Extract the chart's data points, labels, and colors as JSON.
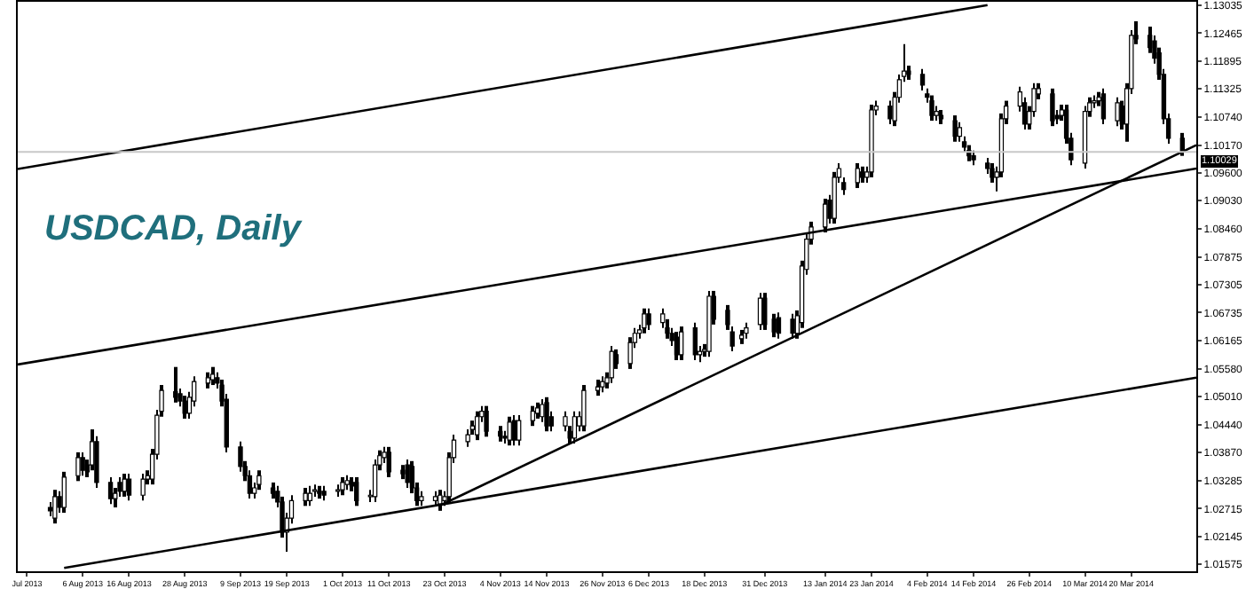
{
  "chart_data": {
    "type": "candlestick",
    "annotations": [
      "USDCAD, Daily"
    ],
    "x": [
      "2013-07-30",
      "2013-07-31",
      "2013-08-01",
      "2013-08-02",
      "2013-08-05",
      "2013-08-06",
      "2013-08-07",
      "2013-08-08",
      "2013-08-09",
      "2013-08-12",
      "2013-08-13",
      "2013-08-14",
      "2013-08-15",
      "2013-08-16",
      "2013-08-19",
      "2013-08-20",
      "2013-08-21",
      "2013-08-22",
      "2013-08-23",
      "2013-08-26",
      "2013-08-27",
      "2013-08-28",
      "2013-08-29",
      "2013-08-30",
      "2013-09-02",
      "2013-09-03",
      "2013-09-04",
      "2013-09-05",
      "2013-09-06",
      "2013-09-09",
      "2013-09-10",
      "2013-09-11",
      "2013-09-12",
      "2013-09-13",
      "2013-09-16",
      "2013-09-17",
      "2013-09-18",
      "2013-09-19",
      "2013-09-20",
      "2013-09-23",
      "2013-09-24",
      "2013-09-25",
      "2013-09-26",
      "2013-09-27",
      "2013-09-30",
      "2013-10-01",
      "2013-10-02",
      "2013-10-03",
      "2013-10-04",
      "2013-10-07",
      "2013-10-08",
      "2013-10-09",
      "2013-10-10",
      "2013-10-11",
      "2013-10-14",
      "2013-10-15",
      "2013-10-16",
      "2013-10-17",
      "2013-10-18",
      "2013-10-21",
      "2013-10-22",
      "2013-10-23",
      "2013-10-24",
      "2013-10-25",
      "2013-10-28",
      "2013-10-29",
      "2013-10-30",
      "2013-10-31",
      "2013-11-01",
      "2013-11-04",
      "2013-11-05",
      "2013-11-06",
      "2013-11-07",
      "2013-11-08",
      "2013-11-11",
      "2013-11-12",
      "2013-11-13",
      "2013-11-14",
      "2013-11-15",
      "2013-11-18",
      "2013-11-19",
      "2013-11-20",
      "2013-11-21",
      "2013-11-22",
      "2013-11-25",
      "2013-11-26",
      "2013-11-27",
      "2013-11-28",
      "2013-11-29",
      "2013-12-02",
      "2013-12-03",
      "2013-12-04",
      "2013-12-05",
      "2013-12-06",
      "2013-12-09",
      "2013-12-10",
      "2013-12-11",
      "2013-12-12",
      "2013-12-13",
      "2013-12-16",
      "2013-12-17",
      "2013-12-18",
      "2013-12-19",
      "2013-12-20",
      "2013-12-23",
      "2013-12-24",
      "2013-12-26",
      "2013-12-27",
      "2013-12-30",
      "2013-12-31",
      "2014-01-02",
      "2014-01-03",
      "2014-01-06",
      "2014-01-07",
      "2014-01-08",
      "2014-01-09",
      "2014-01-10",
      "2014-01-13",
      "2014-01-14",
      "2014-01-15",
      "2014-01-16",
      "2014-01-17",
      "2014-01-20",
      "2014-01-21",
      "2014-01-22",
      "2014-01-23",
      "2014-01-24",
      "2014-01-27",
      "2014-01-28",
      "2014-01-29",
      "2014-01-30",
      "2014-01-31",
      "2014-02-03",
      "2014-02-04",
      "2014-02-05",
      "2014-02-06",
      "2014-02-07",
      "2014-02-10",
      "2014-02-11",
      "2014-02-12",
      "2014-02-13",
      "2014-02-14",
      "2014-02-17",
      "2014-02-18",
      "2014-02-19",
      "2014-02-20",
      "2014-02-21",
      "2014-02-24",
      "2014-02-25",
      "2014-02-26",
      "2014-02-27",
      "2014-02-28",
      "2014-03-03",
      "2014-03-04",
      "2014-03-05",
      "2014-03-06",
      "2014-03-07",
      "2014-03-10",
      "2014-03-11",
      "2014-03-12",
      "2014-03-13",
      "2014-03-14",
      "2014-03-17",
      "2014-03-18",
      "2014-03-19",
      "2014-03-20",
      "2014-03-21",
      "2014-03-24",
      "2014-03-25",
      "2014-03-26",
      "2014-03-27",
      "2014-03-28",
      "2014-03-31"
    ],
    "ohlc": [
      [
        1.0274,
        1.0285,
        1.0256,
        1.0267
      ],
      [
        1.0252,
        1.031,
        1.0241,
        1.0296
      ],
      [
        1.0296,
        1.0307,
        1.0263,
        1.0274
      ],
      [
        1.0274,
        1.0347,
        1.0263,
        1.0336
      ],
      [
        1.0339,
        1.0387,
        1.0328,
        1.0376
      ],
      [
        1.0376,
        1.0387,
        1.0339,
        1.035
      ],
      [
        1.0361,
        1.0372,
        1.0336,
        1.0347
      ],
      [
        1.0361,
        1.0434,
        1.035,
        1.0409
      ],
      [
        1.0409,
        1.042,
        1.0314,
        1.0325
      ],
      [
        1.0325,
        1.0336,
        1.0281,
        1.0292
      ],
      [
        1.0292,
        1.0314,
        1.0274,
        1.0303
      ],
      [
        1.0325,
        1.0336,
        1.0296,
        1.0307
      ],
      [
        1.0307,
        1.0343,
        1.0296,
        1.0332
      ],
      [
        1.0332,
        1.0343,
        1.0288,
        1.0299
      ],
      [
        1.0299,
        1.0343,
        1.0288,
        1.0332
      ],
      [
        1.0332,
        1.035,
        1.0321,
        1.0339
      ],
      [
        1.0332,
        1.0394,
        1.0321,
        1.0383
      ],
      [
        1.0383,
        1.0474,
        1.0372,
        1.0463
      ],
      [
        1.0471,
        1.0525,
        1.046,
        1.0514
      ],
      [
        1.0511,
        1.0562,
        1.0489,
        1.05
      ],
      [
        1.0507,
        1.0518,
        1.0481,
        1.0492
      ],
      [
        1.0492,
        1.0503,
        1.0456,
        1.0467
      ],
      [
        1.0467,
        1.0511,
        1.0456,
        1.05
      ],
      [
        1.0492,
        1.0543,
        1.0481,
        1.0532
      ],
      [
        1.0529,
        1.0551,
        1.0518,
        1.054
      ],
      [
        1.0536,
        1.0562,
        1.0525,
        1.0547
      ],
      [
        1.054,
        1.0551,
        1.0518,
        1.0529
      ],
      [
        1.0525,
        1.0536,
        1.0481,
        1.0492
      ],
      [
        1.0496,
        1.0507,
        1.0387,
        1.0398
      ],
      [
        1.0398,
        1.0409,
        1.0347,
        1.0358
      ],
      [
        1.0358,
        1.0369,
        1.0328,
        1.0339
      ],
      [
        1.0339,
        1.035,
        1.0292,
        1.0303
      ],
      [
        1.0303,
        1.0325,
        1.0292,
        1.0314
      ],
      [
        1.0321,
        1.035,
        1.031,
        1.0339
      ],
      [
        1.0314,
        1.0325,
        1.0292,
        1.0303
      ],
      [
        1.0307,
        1.0318,
        1.0274,
        1.0285
      ],
      [
        1.0285,
        1.0296,
        1.0212,
        1.0223
      ],
      [
        1.0223,
        1.0263,
        1.0183,
        1.0252
      ],
      [
        1.0252,
        1.0299,
        1.0241,
        1.0288
      ],
      [
        1.0288,
        1.0314,
        1.0277,
        1.0303
      ],
      [
        1.0288,
        1.0318,
        1.0277,
        1.0303
      ],
      [
        1.0307,
        1.0321,
        1.0296,
        1.031
      ],
      [
        1.0307,
        1.0318,
        1.0292,
        1.0303
      ],
      [
        1.0307,
        1.0318,
        1.0288,
        1.0299
      ],
      [
        1.0307,
        1.0321,
        1.0296,
        1.031
      ],
      [
        1.031,
        1.0336,
        1.0299,
        1.0325
      ],
      [
        1.0321,
        1.034,
        1.031,
        1.0329
      ],
      [
        1.0325,
        1.0336,
        1.0307,
        1.0318
      ],
      [
        1.0325,
        1.0336,
        1.0277,
        1.0288
      ],
      [
        1.0296,
        1.031,
        1.0285,
        1.0299
      ],
      [
        1.0296,
        1.0372,
        1.0285,
        1.0361
      ],
      [
        1.0361,
        1.0391,
        1.035,
        1.038
      ],
      [
        1.0376,
        1.0398,
        1.0365,
        1.0387
      ],
      [
        1.0387,
        1.0398,
        1.0336,
        1.0347
      ],
      [
        1.035,
        1.0361,
        1.0332,
        1.0343
      ],
      [
        1.0361,
        1.0372,
        1.0314,
        1.0325
      ],
      [
        1.0358,
        1.0369,
        1.0303,
        1.0314
      ],
      [
        1.0314,
        1.0325,
        1.0277,
        1.0288
      ],
      [
        1.0288,
        1.0307,
        1.0277,
        1.0296
      ],
      [
        1.0288,
        1.0307,
        1.0277,
        1.0296
      ],
      [
        1.0281,
        1.031,
        1.0267,
        1.0299
      ],
      [
        1.0288,
        1.0307,
        1.0277,
        1.0296
      ],
      [
        1.0296,
        1.0387,
        1.0285,
        1.0376
      ],
      [
        1.0376,
        1.0423,
        1.0365,
        1.0412
      ],
      [
        1.0409,
        1.0434,
        1.0398,
        1.0423
      ],
      [
        1.0434,
        1.0452,
        1.0423,
        1.0441
      ],
      [
        1.0423,
        1.0471,
        1.0412,
        1.046
      ],
      [
        1.046,
        1.0482,
        1.0449,
        1.0471
      ],
      [
        1.0471,
        1.0482,
        1.0419,
        1.043
      ],
      [
        1.043,
        1.0441,
        1.0409,
        1.042
      ],
      [
        1.042,
        1.0431,
        1.0405,
        1.0416
      ],
      [
        1.0412,
        1.046,
        1.0401,
        1.0449
      ],
      [
        1.0452,
        1.0463,
        1.0401,
        1.0412
      ],
      [
        1.0412,
        1.0463,
        1.0401,
        1.0452
      ],
      [
        1.0452,
        1.0482,
        1.0441,
        1.0471
      ],
      [
        1.0467,
        1.0489,
        1.0456,
        1.0478
      ],
      [
        1.046,
        1.0496,
        1.0449,
        1.0485
      ],
      [
        1.0489,
        1.05,
        1.043,
        1.0441
      ],
      [
        1.046,
        1.0471,
        1.043,
        1.0441
      ],
      [
        1.0441,
        1.0471,
        1.043,
        1.046
      ],
      [
        1.043,
        1.0441,
        1.0405,
        1.0416
      ],
      [
        1.0416,
        1.0471,
        1.0405,
        1.046
      ],
      [
        1.0441,
        1.0471,
        1.043,
        1.046
      ],
      [
        1.0441,
        1.0525,
        1.043,
        1.0514
      ],
      [
        1.0514,
        1.0536,
        1.0503,
        1.0521
      ],
      [
        1.0521,
        1.0543,
        1.051,
        1.0532
      ],
      [
        1.0529,
        1.0551,
        1.0518,
        1.054
      ],
      [
        1.054,
        1.0605,
        1.0529,
        1.0594
      ],
      [
        1.0587,
        1.0598,
        1.0558,
        1.0569
      ],
      [
        1.0569,
        1.0623,
        1.0558,
        1.0612
      ],
      [
        1.0612,
        1.0642,
        1.0601,
        1.0631
      ],
      [
        1.0631,
        1.0649,
        1.062,
        1.0638
      ],
      [
        1.0642,
        1.0682,
        1.0631,
        1.0671
      ],
      [
        1.0671,
        1.0682,
        1.0638,
        1.0649
      ],
      [
        1.0653,
        1.0682,
        1.0642,
        1.0671
      ],
      [
        1.0642,
        1.066,
        1.062,
        1.0631
      ],
      [
        1.0631,
        1.0642,
        1.0605,
        1.0616
      ],
      [
        1.0623,
        1.0634,
        1.0576,
        1.0587
      ],
      [
        1.0587,
        1.0645,
        1.0576,
        1.0634
      ],
      [
        1.0642,
        1.0653,
        1.0576,
        1.0587
      ],
      [
        1.0587,
        1.0605,
        1.0572,
        1.0594
      ],
      [
        1.0594,
        1.0609,
        1.0583,
        1.0598
      ],
      [
        1.0594,
        1.0718,
        1.0583,
        1.0707
      ],
      [
        1.0707,
        1.0718,
        1.0649,
        1.066
      ],
      [
        1.0678,
        1.0689,
        1.0638,
        1.0649
      ],
      [
        1.0634,
        1.0645,
        1.0594,
        1.0605
      ],
      [
        1.062,
        1.0638,
        1.0609,
        1.0627
      ],
      [
        1.0631,
        1.0653,
        1.062,
        1.0642
      ],
      [
        1.0649,
        1.0714,
        1.0638,
        1.0703
      ],
      [
        1.0703,
        1.0714,
        1.0638,
        1.0649
      ],
      [
        1.066,
        1.0671,
        1.0623,
        1.0634
      ],
      [
        1.0663,
        1.0674,
        1.062,
        1.0631
      ],
      [
        1.066,
        1.0671,
        1.062,
        1.0631
      ],
      [
        1.0631,
        1.0678,
        1.062,
        1.0667
      ],
      [
        1.0653,
        1.078,
        1.0642,
        1.0769
      ],
      [
        1.0762,
        1.0835,
        1.0751,
        1.0824
      ],
      [
        1.0824,
        1.086,
        1.0813,
        1.0849
      ],
      [
        1.0849,
        1.0907,
        1.0838,
        1.0896
      ],
      [
        1.0904,
        1.0915,
        1.0856,
        1.0867
      ],
      [
        1.0867,
        1.0962,
        1.0856,
        1.0951
      ],
      [
        1.0951,
        1.098,
        1.094,
        1.0969
      ],
      [
        1.094,
        1.0951,
        1.0915,
        1.0926
      ],
      [
        1.094,
        1.098,
        1.0929,
        1.0969
      ],
      [
        1.0962,
        1.0973,
        1.094,
        1.0951
      ],
      [
        1.0951,
        1.0973,
        1.094,
        1.0962
      ],
      [
        1.0962,
        1.11,
        1.0951,
        1.1089
      ],
      [
        1.1089,
        1.1108,
        1.1078,
        1.1097
      ],
      [
        1.1097,
        1.1108,
        1.106,
        1.1071
      ],
      [
        1.1067,
        1.1126,
        1.1056,
        1.1115
      ],
      [
        1.1115,
        1.1162,
        1.1104,
        1.1151
      ],
      [
        1.1158,
        1.1224,
        1.1147,
        1.1169
      ],
      [
        1.1169,
        1.118,
        1.1151,
        1.1162
      ],
      [
        1.1162,
        1.1173,
        1.1129,
        1.114
      ],
      [
        1.1122,
        1.1133,
        1.1104,
        1.1115
      ],
      [
        1.1108,
        1.1119,
        1.1067,
        1.1078
      ],
      [
        1.1078,
        1.1097,
        1.1067,
        1.1086
      ],
      [
        1.1078,
        1.1089,
        1.106,
        1.1071
      ],
      [
        1.1067,
        1.1078,
        1.1024,
        1.1035
      ],
      [
        1.1035,
        1.1064,
        1.1024,
        1.1053
      ],
      [
        1.1024,
        1.1035,
        1.1002,
        1.1013
      ],
      [
        1.1006,
        1.1017,
        1.0984,
        1.0995
      ],
      [
        1.0995,
        1.1006,
        1.0976,
        1.0987
      ],
      [
        1.098,
        1.0991,
        1.0958,
        1.0969
      ],
      [
        1.0969,
        1.098,
        1.094,
        1.0951
      ],
      [
        1.0951,
        1.0973,
        1.0922,
        1.0962
      ],
      [
        1.0962,
        1.1082,
        1.0951,
        1.1071
      ],
      [
        1.1071,
        1.1108,
        1.106,
        1.1097
      ],
      [
        1.1097,
        1.1137,
        1.1086,
        1.1126
      ],
      [
        1.1104,
        1.1115,
        1.1049,
        1.106
      ],
      [
        1.106,
        1.1097,
        1.1049,
        1.1086
      ],
      [
        1.1086,
        1.1144,
        1.1075,
        1.1133
      ],
      [
        1.1122,
        1.1144,
        1.1111,
        1.1133
      ],
      [
        1.1122,
        1.1133,
        1.1056,
        1.1067
      ],
      [
        1.1078,
        1.1089,
        1.106,
        1.1071
      ],
      [
        1.1078,
        1.11,
        1.1067,
        1.1089
      ],
      [
        1.1089,
        1.11,
        1.102,
        1.1031
      ],
      [
        1.1031,
        1.1042,
        1.0976,
        1.0987
      ],
      [
        1.098,
        1.1097,
        1.0969,
        1.1086
      ],
      [
        1.1086,
        1.1115,
        1.1075,
        1.1104
      ],
      [
        1.1104,
        1.1119,
        1.1093,
        1.1108
      ],
      [
        1.1108,
        1.1126,
        1.1097,
        1.1115
      ],
      [
        1.1122,
        1.1133,
        1.106,
        1.1071
      ],
      [
        1.1067,
        1.1115,
        1.1056,
        1.1104
      ],
      [
        1.1097,
        1.1108,
        1.1049,
        1.106
      ],
      [
        1.106,
        1.1144,
        1.1024,
        1.1133
      ],
      [
        1.1133,
        1.1253,
        1.1122,
        1.1242
      ],
      [
        1.1242,
        1.1271,
        1.1224,
        1.1235
      ],
      [
        1.1242,
        1.126,
        1.1206,
        1.1217
      ],
      [
        1.1231,
        1.1242,
        1.1184,
        1.1195
      ],
      [
        1.1206,
        1.1217,
        1.1151,
        1.1162
      ],
      [
        1.1162,
        1.1173,
        1.106,
        1.1071
      ],
      [
        1.1071,
        1.1082,
        1.102,
        1.1031
      ],
      [
        1.1031,
        1.1042,
        1.0995,
        1.10029
      ]
    ],
    "series": [
      {
        "type": "line",
        "color": "#000000",
        "x": [
          "2013-07-23",
          "2014-02-17"
        ],
        "values": [
          1.0968,
          1.1304
        ]
      },
      {
        "type": "line",
        "color": "#000000",
        "x": [
          "2013-07-23",
          "2014-04-03"
        ],
        "values": [
          1.0567,
          1.0969
        ]
      },
      {
        "type": "line",
        "color": "#000000",
        "x": [
          "2013-08-02",
          "2014-04-03"
        ],
        "values": [
          1.015,
          1.054
        ]
      },
      {
        "type": "line",
        "color": "#000000",
        "x": [
          "2013-10-22",
          "2014-04-03"
        ],
        "values": [
          1.0278,
          1.1017
        ]
      }
    ],
    "ref_lines": [
      {
        "axis": "y",
        "value": 1.10029,
        "label": "1.10029",
        "color": "#c8c8c8"
      }
    ],
    "xlim": [
      "2013-07-23",
      "2014-04-03"
    ],
    "xticks": [
      {
        "value": "2013-07-25",
        "label": "Jul 2013"
      },
      {
        "value": "2013-08-06",
        "label": "6 Aug 2013"
      },
      {
        "value": "2013-08-16",
        "label": "16 Aug 2013"
      },
      {
        "value": "2013-08-28",
        "label": "28 Aug 2013"
      },
      {
        "value": "2013-09-09",
        "label": "9 Sep 2013"
      },
      {
        "value": "2013-09-19",
        "label": "19 Sep 2013"
      },
      {
        "value": "2013-10-01",
        "label": "1 Oct 2013"
      },
      {
        "value": "2013-10-11",
        "label": "11 Oct 2013"
      },
      {
        "value": "2013-10-23",
        "label": "23 Oct 2013"
      },
      {
        "value": "2013-11-04",
        "label": "4 Nov 2013"
      },
      {
        "value": "2013-11-14",
        "label": "14 Nov 2013"
      },
      {
        "value": "2013-11-26",
        "label": "26 Nov 2013"
      },
      {
        "value": "2013-12-06",
        "label": "6 Dec 2013"
      },
      {
        "value": "2013-12-18",
        "label": "18 Dec 2013"
      },
      {
        "value": "2013-12-31",
        "label": "31 Dec 2013"
      },
      {
        "value": "2014-01-13",
        "label": "13 Jan 2014"
      },
      {
        "value": "2014-01-23",
        "label": "23 Jan 2014"
      },
      {
        "value": "2014-02-04",
        "label": "4 Feb 2014"
      },
      {
        "value": "2014-02-14",
        "label": "14 Feb 2014"
      },
      {
        "value": "2014-02-26",
        "label": "26 Feb 2014"
      },
      {
        "value": "2014-03-10",
        "label": "10 Mar 2014"
      },
      {
        "value": "2014-03-20",
        "label": "20 Mar 2014"
      }
    ],
    "ylim": [
      1.0143,
      1.1311
    ],
    "yticks": [
      1.01575,
      1.02145,
      1.02715,
      1.03285,
      {
        "value": 1.0387,
        "label": "1.03870"
      },
      {
        "value": 1.0444,
        "label": "1.04440"
      },
      {
        "value": 1.0501,
        "label": "1.05010"
      },
      {
        "value": 1.0558,
        "label": "1.05580"
      },
      1.06165,
      1.06735,
      1.07305,
      1.07875,
      {
        "value": 1.0846,
        "label": "1.08460"
      },
      {
        "value": 1.0903,
        "label": "1.09030"
      },
      {
        "value": 1.096,
        "label": "1.09600"
      },
      {
        "value": 1.1017,
        "label": "1.10170"
      },
      {
        "value": 1.1074,
        "label": "1.10740"
      },
      1.11325,
      1.11895,
      1.12465,
      1.13035
    ]
  }
}
